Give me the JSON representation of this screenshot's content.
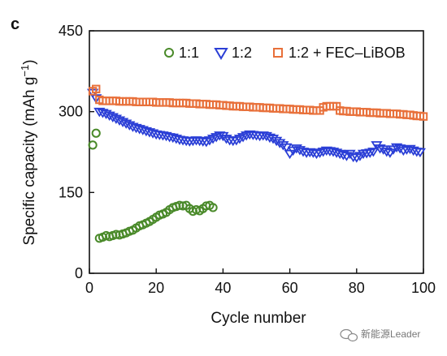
{
  "panel_label": "c",
  "watermark": {
    "text": "新能源Leader",
    "icon": "chat-bubble-icon"
  },
  "colors": {
    "green": "#4a8a2a",
    "blue": "#2b3fd6",
    "orange": "#e8703a",
    "axis": "#111111"
  },
  "chart_data": {
    "type": "scatter",
    "xlabel": "Cycle number",
    "ylabel": "Specific capacity (mAh g",
    "ylabel_sup": "−1",
    "ylabel_suffix": ")",
    "xlim": [
      0,
      100
    ],
    "ylim": [
      0,
      450
    ],
    "xticks": [
      0,
      20,
      40,
      60,
      80,
      100
    ],
    "yticks": [
      0,
      150,
      300,
      450
    ],
    "xtick_labels": [
      "0",
      "20",
      "40",
      "60",
      "80",
      "100"
    ],
    "ytick_labels": [
      "0",
      "150",
      "300",
      "450"
    ],
    "legend_position": "top-right",
    "series": [
      {
        "name": "1:1",
        "marker": "circle",
        "color": "#4a8a2a",
        "x": [
          1,
          2,
          3,
          4,
          5,
          6,
          7,
          8,
          9,
          10,
          11,
          12,
          13,
          14,
          15,
          16,
          17,
          18,
          19,
          20,
          21,
          22,
          23,
          24,
          25,
          26,
          27,
          28,
          29,
          30,
          31,
          32,
          33,
          34,
          35,
          36,
          37
        ],
        "y": [
          238,
          260,
          65,
          67,
          70,
          68,
          70,
          72,
          71,
          73,
          75,
          78,
          80,
          84,
          88,
          90,
          93,
          96,
          100,
          104,
          108,
          110,
          113,
          118,
          122,
          124,
          126,
          125,
          126,
          120,
          115,
          118,
          116,
          120,
          125,
          126,
          122
        ]
      },
      {
        "name": "1:2",
        "marker": "triangle-down",
        "color": "#2b3fd6",
        "x": [
          1,
          2,
          3,
          4,
          5,
          6,
          7,
          8,
          9,
          10,
          11,
          12,
          13,
          14,
          15,
          16,
          17,
          18,
          19,
          20,
          21,
          22,
          23,
          24,
          25,
          26,
          27,
          28,
          29,
          30,
          31,
          32,
          33,
          34,
          35,
          36,
          37,
          38,
          39,
          40,
          41,
          42,
          43,
          44,
          45,
          46,
          47,
          48,
          49,
          50,
          51,
          52,
          53,
          54,
          55,
          56,
          57,
          58,
          59,
          60,
          61,
          62,
          63,
          64,
          65,
          66,
          67,
          68,
          69,
          70,
          71,
          72,
          73,
          74,
          75,
          76,
          77,
          78,
          79,
          80,
          81,
          82,
          83,
          84,
          85,
          86,
          87,
          88,
          89,
          90,
          91,
          92,
          93,
          94,
          95,
          96,
          97,
          98,
          99
        ],
        "y": [
          335,
          325,
          300,
          298,
          296,
          293,
          290,
          287,
          284,
          281,
          278,
          275,
          272,
          270,
          268,
          266,
          264,
          262,
          260,
          258,
          257,
          256,
          255,
          253,
          252,
          250,
          248,
          247,
          246,
          245,
          246,
          247,
          246,
          245,
          244,
          247,
          250,
          253,
          256,
          255,
          250,
          247,
          246,
          247,
          250,
          253,
          256,
          258,
          257,
          256,
          255,
          256,
          255,
          252,
          250,
          246,
          242,
          238,
          234,
          222,
          228,
          232,
          229,
          226,
          224,
          225,
          224,
          222,
          224,
          226,
          228,
          227,
          226,
          224,
          222,
          220,
          218,
          222,
          216,
          215,
          218,
          222,
          223,
          224,
          226,
          238,
          232,
          230,
          226,
          224,
          230,
          234,
          232,
          228,
          230,
          231,
          228,
          226,
          225
        ]
      },
      {
        "name": "1:2 + FEC–LiBOB",
        "marker": "square",
        "color": "#e8703a",
        "x": [
          1,
          2,
          3,
          4,
          5,
          6,
          7,
          8,
          9,
          10,
          11,
          12,
          13,
          14,
          15,
          16,
          17,
          18,
          19,
          20,
          21,
          22,
          23,
          24,
          25,
          26,
          27,
          28,
          29,
          30,
          31,
          32,
          33,
          34,
          35,
          36,
          37,
          38,
          39,
          40,
          41,
          42,
          43,
          44,
          45,
          46,
          47,
          48,
          49,
          50,
          51,
          52,
          53,
          54,
          55,
          56,
          57,
          58,
          59,
          60,
          61,
          62,
          63,
          64,
          65,
          66,
          67,
          68,
          69,
          70,
          71,
          72,
          73,
          74,
          75,
          76,
          77,
          78,
          79,
          80,
          81,
          82,
          83,
          84,
          85,
          86,
          87,
          88,
          89,
          90,
          91,
          92,
          93,
          94,
          95,
          96,
          97,
          98,
          99,
          100
        ],
        "y": [
          338,
          342,
          322,
          320,
          320,
          320,
          320,
          320,
          319,
          319,
          319,
          319,
          319,
          318,
          318,
          318,
          318,
          318,
          318,
          317,
          317,
          317,
          317,
          317,
          316,
          316,
          316,
          316,
          316,
          315,
          315,
          315,
          314,
          314,
          314,
          313,
          313,
          313,
          312,
          312,
          311,
          311,
          310,
          310,
          310,
          309,
          309,
          309,
          308,
          308,
          308,
          307,
          307,
          307,
          306,
          306,
          306,
          305,
          305,
          305,
          304,
          304,
          304,
          303,
          303,
          303,
          302,
          302,
          302,
          308,
          310,
          310,
          310,
          310,
          302,
          301,
          301,
          300,
          300,
          300,
          299,
          299,
          299,
          298,
          298,
          298,
          297,
          297,
          297,
          296,
          296,
          296,
          295,
          295,
          294,
          294,
          293,
          292,
          292,
          291
        ]
      }
    ]
  }
}
